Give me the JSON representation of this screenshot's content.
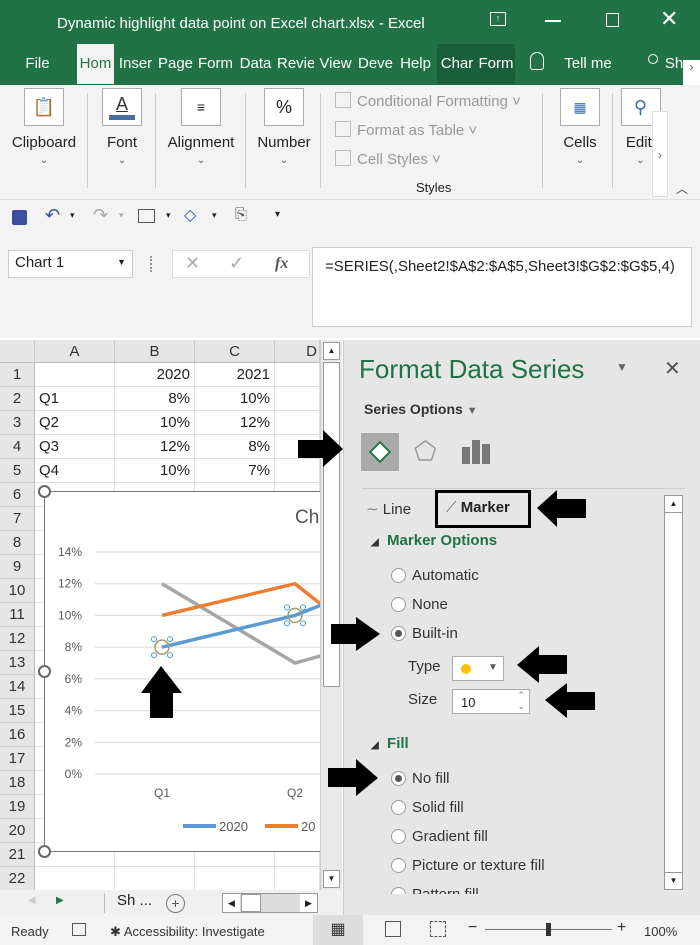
{
  "window": {
    "title": "Dynamic highlight data point on Excel chart.xlsx  -  Excel",
    "controls": [
      "restore-ribbon",
      "minimize",
      "maximize",
      "close"
    ]
  },
  "tabs": [
    {
      "label": "File"
    },
    {
      "label": "Hom",
      "active": true
    },
    {
      "label": "Inser"
    },
    {
      "label": "Page"
    },
    {
      "label": "Form"
    },
    {
      "label": "Data"
    },
    {
      "label": "Revie"
    },
    {
      "label": "View"
    },
    {
      "label": "Deve"
    },
    {
      "label": "Help"
    },
    {
      "label": "Char"
    },
    {
      "label": "Form"
    }
  ],
  "tell_me": "Tell me",
  "share": "Sh",
  "ribbon": {
    "clipboard": "Clipboard",
    "font": "Font",
    "alignment": "Alignment",
    "number": "Number",
    "number_icon": "%",
    "conditional_formatting": "Conditional Formatting",
    "format_as_table": "Format as Table",
    "cell_styles": "Cell Styles",
    "styles_group": "Styles",
    "cells": "Cells",
    "editing": "Editi"
  },
  "name_box": "Chart 1",
  "formula": "=SERIES(,Sheet2!$A$2:$A$5,Sheet3!$G$2:$G$5,4)",
  "fx": "fx",
  "columns": [
    "A",
    "B",
    "C",
    "D"
  ],
  "rows": [
    "1",
    "2",
    "3",
    "4",
    "5",
    "6",
    "7",
    "8",
    "9",
    "10",
    "11",
    "12",
    "13",
    "14",
    "15",
    "16",
    "17",
    "18",
    "19",
    "20",
    "21",
    "22"
  ],
  "table": [
    [
      "",
      "2020",
      "2021"
    ],
    [
      "Q1",
      "8%",
      "10%"
    ],
    [
      "Q2",
      "10%",
      "12%"
    ],
    [
      "Q3",
      "12%",
      "8%"
    ],
    [
      "Q4",
      "10%",
      "7%"
    ]
  ],
  "chart_data": {
    "type": "line",
    "title": "Ch",
    "categories": [
      "Q1",
      "Q2"
    ],
    "y_ticks": [
      "14%",
      "12%",
      "10%",
      "8%",
      "6%",
      "4%",
      "2%",
      "0%"
    ],
    "ylim": [
      0,
      14
    ],
    "grid": true,
    "legend": "bottom",
    "series": [
      {
        "name": "2020",
        "values": [
          8,
          10
        ],
        "color": "#5b9bd5"
      },
      {
        "name": "20",
        "values": [
          10,
          12
        ],
        "color": "#ed7d31"
      },
      {
        "values": [
          12,
          7
        ],
        "color": "#a5a5a5"
      }
    ]
  },
  "panel": {
    "title": "Format Data Series",
    "series_options": "Series Options",
    "line_tab": "Line",
    "marker_tab": "Marker",
    "marker_options": "Marker Options",
    "automatic": "Automatic",
    "none": "None",
    "builtin": "Built-in",
    "type_label": "Type",
    "size_label": "Size",
    "size_value": "10",
    "marker_color": "#ffc000",
    "fill": "Fill",
    "no_fill": "No fill",
    "solid_fill": "Solid fill",
    "gradient_fill": "Gradient fill",
    "picture_fill": "Picture or texture fill",
    "pattern_fill": "Pattern fill"
  },
  "sheet_tab": "Sh ...",
  "status": {
    "ready": "Ready",
    "accessibility": "Accessibility: Investigate",
    "zoom": "100%"
  },
  "colors": {
    "excel_green": "#217346"
  }
}
